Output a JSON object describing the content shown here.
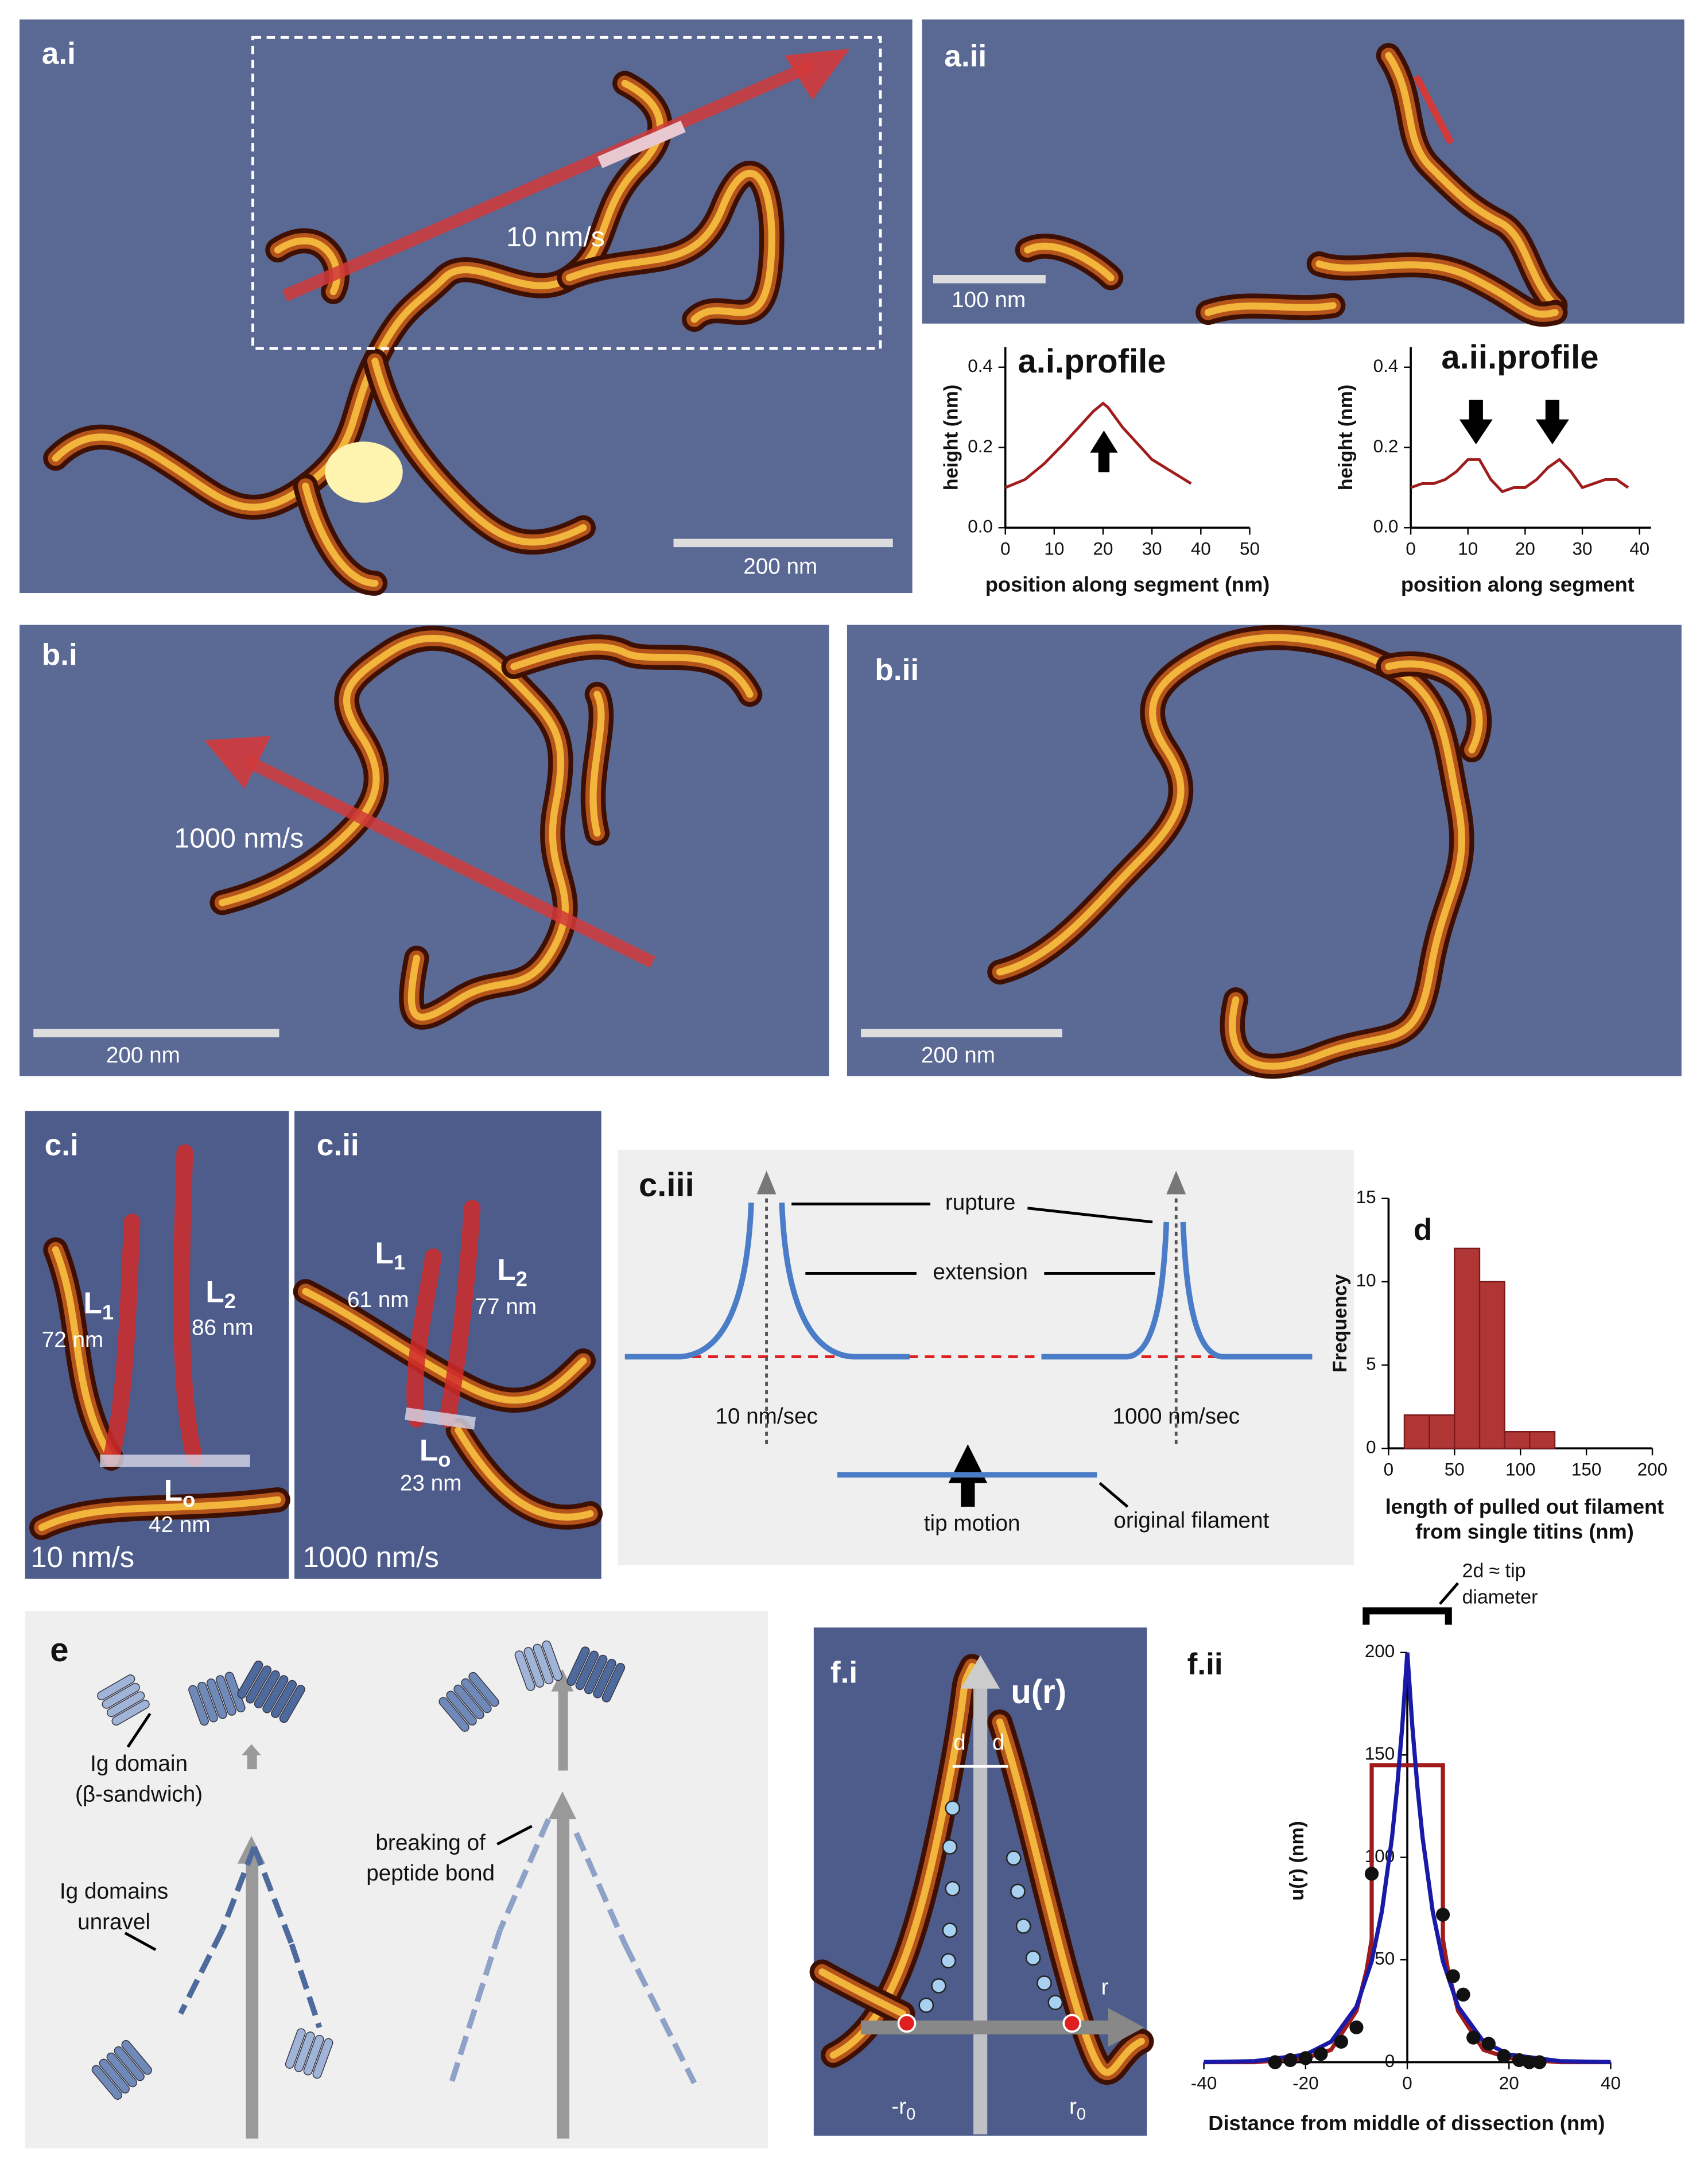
{
  "panels": {
    "a_i": {
      "label": "a.i",
      "speed": "10 nm/s",
      "scale": "200 nm"
    },
    "a_ii": {
      "label": "a.ii",
      "scale": "100 nm"
    },
    "b_i": {
      "label": "b.i",
      "speed": "1000 nm/s",
      "scale": "200 nm"
    },
    "b_ii": {
      "label": "b.ii",
      "scale": "200 nm"
    },
    "c_i": {
      "label": "c.i",
      "L1": {
        "main": "L",
        "sub": "1",
        "length": "72 nm"
      },
      "L2": {
        "main": "L",
        "sub": "2",
        "length": "86 nm"
      },
      "Lo": {
        "main": "L",
        "sub": "o",
        "length": "42 nm"
      },
      "speed": "10 nm/s"
    },
    "c_ii": {
      "label": "c.ii",
      "L1": {
        "main": "L",
        "sub": "1",
        "length": "61 nm"
      },
      "L2": {
        "main": "L",
        "sub": "2",
        "length": "77 nm"
      },
      "Lo": {
        "main": "L",
        "sub": "o",
        "length": "23 nm"
      },
      "speed": "1000 nm/s"
    },
    "c_iii": {
      "label": "c.iii",
      "rupture": "rupture",
      "extension": "extension",
      "slow": "10 nm/sec",
      "fast": "1000 nm/sec",
      "tip": "tip motion",
      "original": "original filament"
    },
    "e": {
      "label": "e",
      "ig": [
        "Ig domain",
        "(β-sandwich)"
      ],
      "unravel": [
        "Ig domains",
        "unravel"
      ],
      "breaking": [
        "breaking of",
        "peptide bond"
      ]
    },
    "f_i": {
      "label": "f.i",
      "u": "u(r)",
      "d": "d",
      "r": "r",
      "neg_r0": {
        "main": "-r",
        "sub": "0"
      },
      "r0": {
        "main": "r",
        "sub": "0"
      }
    }
  },
  "chart_data": [
    {
      "type": "line",
      "title": "a.i.profile",
      "xlabel": "position along segment (nm)",
      "ylabel": "height (nm)",
      "color": "#a01c1c",
      "x": [
        0,
        4,
        8,
        12,
        15,
        18,
        20,
        21,
        24,
        27,
        30,
        34,
        38
      ],
      "values": [
        0.1,
        0.12,
        0.16,
        0.21,
        0.25,
        0.29,
        0.31,
        0.3,
        0.25,
        0.21,
        0.17,
        0.14,
        0.11
      ],
      "xlim": [
        0,
        50
      ],
      "xticks": [
        0,
        10,
        20,
        30,
        40,
        50
      ],
      "ylim": [
        0,
        0.45
      ],
      "yticks": [
        {
          "value": 0,
          "label": "0.0"
        },
        0.2,
        0.4
      ]
    },
    {
      "type": "line",
      "title": "a.ii.profile",
      "xlabel": "position along segment",
      "ylabel": "height (nm)",
      "color": "#a01c1c",
      "x": [
        0,
        2,
        4,
        6,
        8,
        10,
        12,
        14,
        16,
        18,
        20,
        22,
        24,
        26,
        28,
        30,
        32,
        34,
        36,
        38
      ],
      "values": [
        0.1,
        0.11,
        0.11,
        0.12,
        0.14,
        0.17,
        0.17,
        0.12,
        0.09,
        0.1,
        0.1,
        0.12,
        0.15,
        0.17,
        0.14,
        0.1,
        0.11,
        0.12,
        0.12,
        0.1
      ],
      "xlim": [
        0,
        42
      ],
      "xticks": [
        0,
        10,
        20,
        30,
        40
      ],
      "ylim": [
        0,
        0.45
      ],
      "yticks": [
        {
          "value": 0,
          "label": "0.0"
        },
        0.2,
        0.4
      ]
    },
    {
      "type": "histogram",
      "title": "d",
      "xlabel": [
        "length of pulled out filament",
        "from single titins (nm)"
      ],
      "ylabel": "Frequency",
      "color": "#b03636",
      "bins": [
        12,
        31,
        50,
        69,
        88,
        107,
        126
      ],
      "values": [
        2,
        2,
        12,
        10,
        1,
        1
      ],
      "xlim": [
        0,
        200
      ],
      "xticks": [
        0,
        50,
        100,
        150,
        200
      ],
      "ylim": [
        0,
        15
      ],
      "yticks": [
        0,
        5,
        10,
        15
      ]
    },
    {
      "type": "scatter",
      "title": "f.ii",
      "xlabel": "Distance from middle of dissection (nm)",
      "ylabel": "u(r) (nm)",
      "annotation": [
        "2d ≈ tip",
        "diameter"
      ],
      "color": "#111111",
      "x": [
        -26,
        -23,
        -20,
        -17,
        -13,
        -10,
        -7,
        7,
        9,
        11,
        13,
        16,
        19,
        22,
        24,
        26
      ],
      "values": [
        0,
        1,
        2,
        4,
        10,
        17,
        92,
        72,
        42,
        33,
        12,
        9,
        3,
        1,
        0,
        0
      ],
      "curves": [
        {
          "color": "#a01c1c",
          "x": [
            -40,
            -30,
            -20,
            -15,
            -10,
            -8,
            -7,
            -7,
            7,
            7,
            8,
            10,
            15,
            20,
            30,
            40
          ],
          "values": [
            0,
            0,
            2,
            6,
            25,
            45,
            60,
            145,
            145,
            60,
            45,
            25,
            6,
            2,
            0,
            0
          ]
        },
        {
          "color": "#1a1aa8",
          "x": [
            -40,
            -30,
            -20,
            -15,
            -10,
            -7,
            -5,
            -3,
            -2,
            -1,
            0,
            1,
            2,
            3,
            5,
            7,
            10,
            15,
            20,
            30,
            40
          ],
          "values": [
            0.07,
            0.5,
            3.7,
            10,
            27.1,
            49.3,
            73.6,
            109.8,
            134.1,
            163.7,
            200,
            163.7,
            134.1,
            109.8,
            73.6,
            49.3,
            27.1,
            10,
            3.7,
            0.5,
            0.07
          ]
        }
      ],
      "xlim": [
        -40,
        40
      ],
      "xticks": [
        -40,
        -20,
        0,
        20,
        40
      ],
      "ylim": [
        0,
        200
      ],
      "yticks": [
        0,
        50,
        100,
        150,
        200
      ]
    }
  ]
}
